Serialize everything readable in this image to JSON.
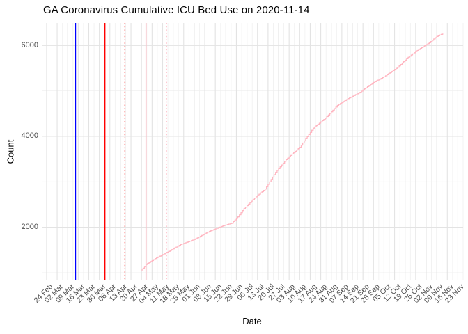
{
  "chart_data": {
    "type": "line",
    "title": "GA Coronavirus Cumulative ICU Bed Use on 2020-11-14",
    "xlabel": "Date",
    "ylabel": "Count",
    "x_tick_labels": [
      "24 Feb",
      "02 Mar",
      "09 Mar",
      "16 Mar",
      "23 Mar",
      "30 Mar",
      "06 Apr",
      "13 Apr",
      "20 Apr",
      "27 Apr",
      "04 May",
      "11 May",
      "18 May",
      "25 May",
      "01 Jun",
      "08 Jun",
      "15 Jun",
      "22 Jun",
      "29 Jun",
      "06 Jul",
      "13 Jul",
      "20 Jul",
      "27 Jul",
      "03 Aug",
      "10 Aug",
      "17 Aug",
      "24 Aug",
      "31 Aug",
      "07 Sep",
      "14 Sep",
      "21 Sep",
      "28 Sep",
      "05 Oct",
      "12 Oct",
      "19 Oct",
      "26 Oct",
      "02 Nov",
      "09 Nov",
      "16 Nov",
      "23 Nov"
    ],
    "x_tick_interval_days": 7,
    "y_ticks": [
      2000,
      4000,
      6000
    ],
    "y_minor_gridlines": [
      1000,
      3000,
      5000
    ],
    "ylim": [
      830,
      6495
    ],
    "xlim_days": [
      -3.2,
      276.5
    ],
    "grid": {
      "major_color": "#e3e3e3",
      "minor_color": "#f0f0f0",
      "background": "#ffffff"
    },
    "axis_text_color": "#4d4d4d",
    "legend": "none",
    "series": [
      {
        "name": "cumulative-icu-bed-use",
        "color": "#ffb6c1",
        "style": "daily-steps",
        "points_day_value": [
          [
            63,
            1060
          ],
          [
            66,
            1180
          ],
          [
            72,
            1310
          ],
          [
            80,
            1450
          ],
          [
            89,
            1620
          ],
          [
            98,
            1730
          ],
          [
            108,
            1910
          ],
          [
            117,
            2030
          ],
          [
            123,
            2090
          ],
          [
            127,
            2230
          ],
          [
            131,
            2410
          ],
          [
            138,
            2640
          ],
          [
            145,
            2840
          ],
          [
            152,
            3210
          ],
          [
            159,
            3490
          ],
          [
            168,
            3760
          ],
          [
            177,
            4180
          ],
          [
            185,
            4400
          ],
          [
            193,
            4680
          ],
          [
            200,
            4830
          ],
          [
            208,
            4970
          ],
          [
            216,
            5170
          ],
          [
            224,
            5310
          ],
          [
            233,
            5520
          ],
          [
            240,
            5740
          ],
          [
            246,
            5890
          ],
          [
            254,
            6060
          ],
          [
            259,
            6200
          ],
          [
            263,
            6260
          ]
        ]
      }
    ],
    "vlines": [
      {
        "date": "14 Mar",
        "day": 19.2,
        "color": "#0000ff",
        "style": "solid"
      },
      {
        "date": "03 Apr",
        "day": 38.7,
        "color": "#ff0000",
        "style": "solid"
      },
      {
        "date": "17 Apr",
        "day": 52.0,
        "color": "#ff0000",
        "style": "dotted"
      },
      {
        "date": "30 Apr",
        "day": 66.0,
        "color": "#ffb6c1",
        "style": "solid"
      },
      {
        "date": "14 May",
        "day": 79.6,
        "color": "#ffb6c1",
        "style": "dotted"
      }
    ]
  }
}
